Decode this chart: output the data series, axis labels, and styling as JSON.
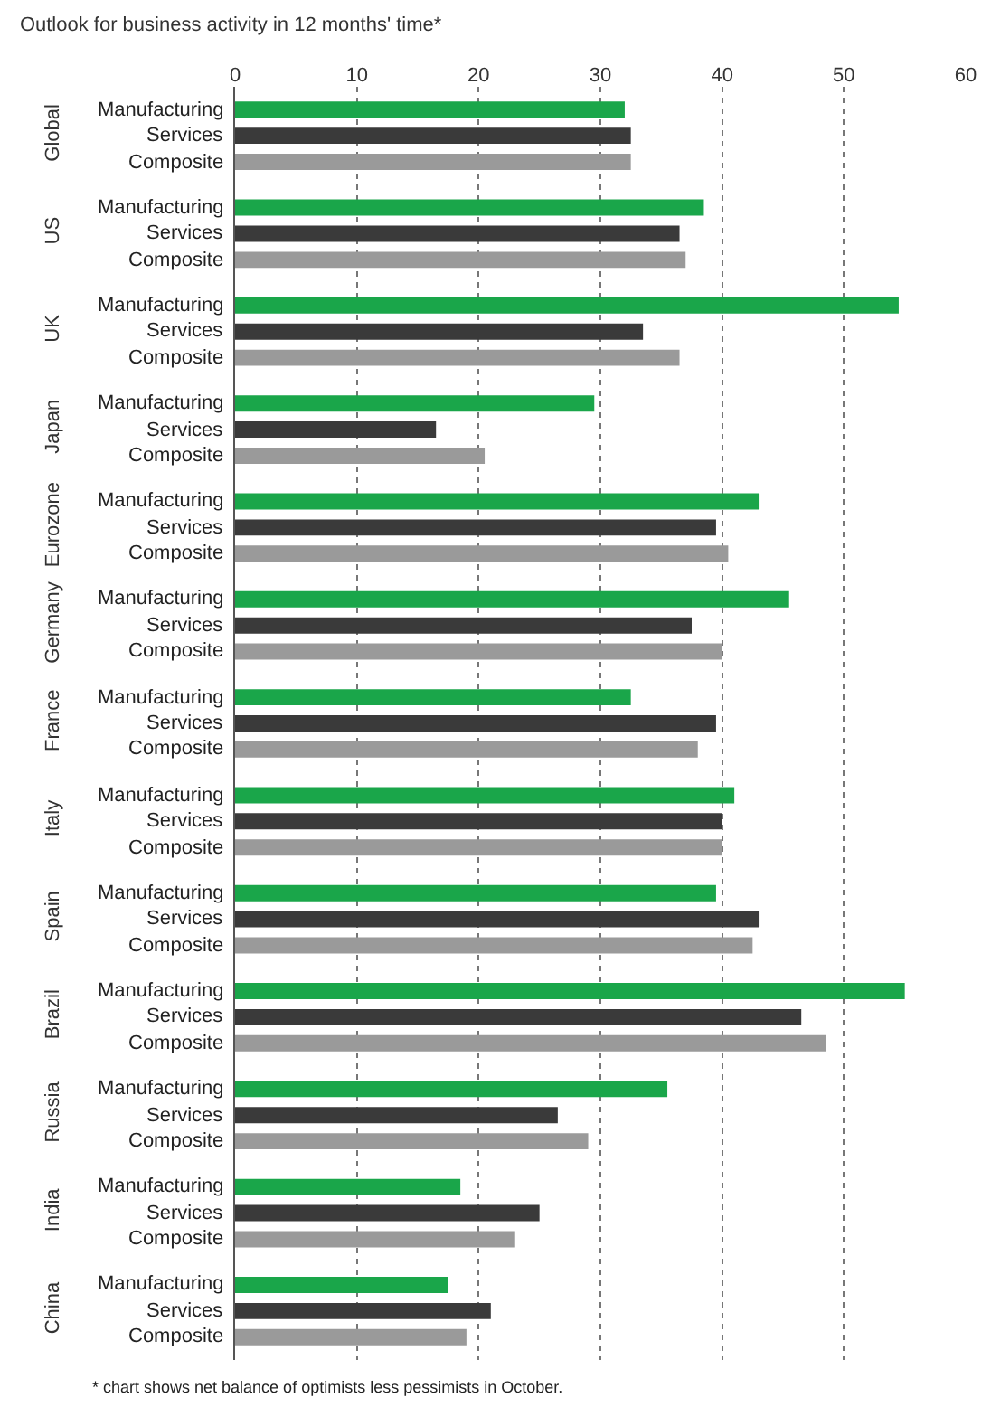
{
  "chart_data": {
    "type": "bar",
    "orientation": "horizontal",
    "title": "Outlook for business activity in 12 months' time*",
    "categories": [
      "Global",
      "US",
      "UK",
      "Japan",
      "Eurozone",
      "Germany",
      "France",
      "Italy",
      "Spain",
      "Brazil",
      "Russia",
      "India",
      "China"
    ],
    "series": [
      {
        "name": "Manufacturing",
        "color": "#1aa64a",
        "values": [
          32,
          38.5,
          54.5,
          29.5,
          43,
          45.5,
          32.5,
          41,
          39.5,
          55,
          35.5,
          18.5,
          17.5
        ]
      },
      {
        "name": "Services",
        "color": "#3a3a3a",
        "values": [
          32.5,
          36.5,
          33.5,
          16.5,
          39.5,
          37.5,
          39.5,
          40,
          43,
          46.5,
          26.5,
          25,
          21
        ]
      },
      {
        "name": "Composite",
        "color": "#9a9a9a",
        "values": [
          32.5,
          37,
          36.5,
          20.5,
          40.5,
          40,
          38,
          40,
          42.5,
          48.5,
          29,
          23,
          19
        ]
      }
    ],
    "xlim": [
      0,
      60
    ],
    "xticks": [
      0,
      10,
      20,
      30,
      40,
      50,
      60
    ],
    "grid": "x",
    "legend": false,
    "annotations": [
      "* chart shows net balance of optimists less pessimists in October."
    ]
  }
}
